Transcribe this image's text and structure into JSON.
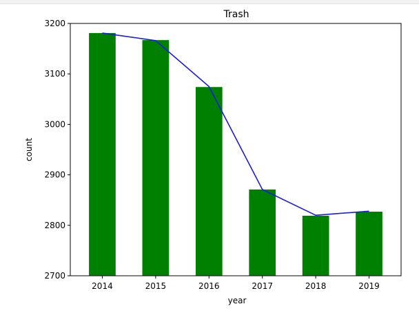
{
  "chart_data": {
    "type": "bar",
    "title": "Trash",
    "xlabel": "year",
    "ylabel": "count",
    "categories": [
      "2014",
      "2015",
      "2016",
      "2017",
      "2018",
      "2019"
    ],
    "values": [
      3181,
      3167,
      3074,
      2871,
      2819,
      2827
    ],
    "line_values": [
      3181,
      3166,
      3075,
      2871,
      2820,
      2828
    ],
    "ylim": [
      2700,
      3200
    ],
    "yticks": [
      2700,
      2800,
      2900,
      3000,
      3100,
      3200
    ],
    "grid": false,
    "bar_color": "#008000",
    "line_color": "#1a1ae6"
  }
}
